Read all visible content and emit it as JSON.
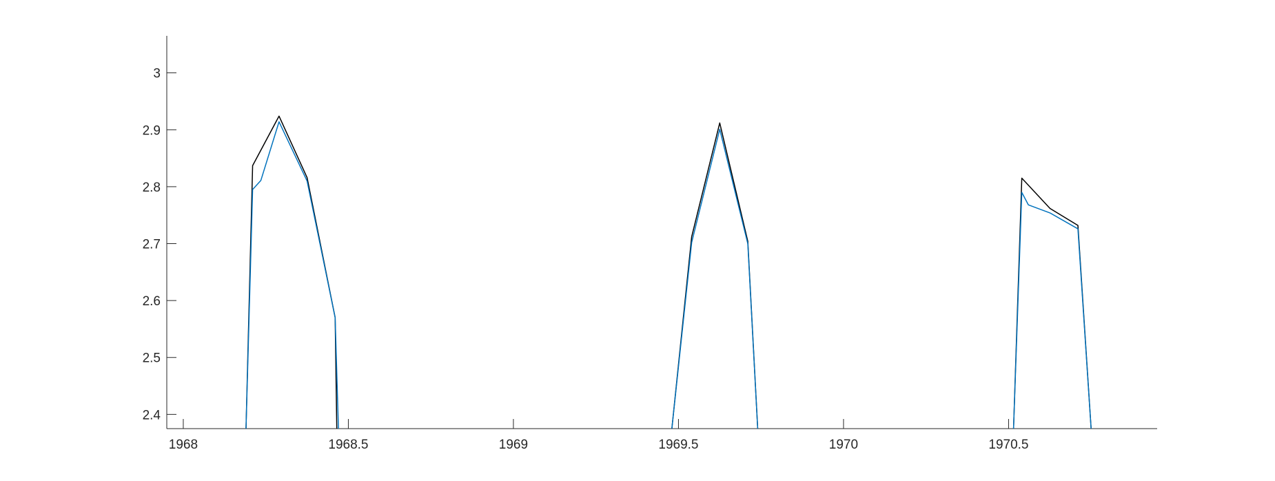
{
  "chart_data": {
    "type": "line",
    "title": "",
    "xlabel": "",
    "ylabel": "",
    "xlim": [
      1967.95,
      1970.95
    ],
    "ylim": [
      2.375,
      3.065
    ],
    "x_ticks": [
      1968,
      1968.5,
      1969,
      1969.5,
      1970,
      1970.5
    ],
    "x_tick_labels": [
      "1968",
      "1968.5",
      "1969",
      "1969.5",
      "1970",
      "1970.5"
    ],
    "y_ticks": [
      2.4,
      2.5,
      2.6,
      2.7,
      2.8,
      2.9,
      3.0
    ],
    "y_tick_labels": [
      "2.4",
      "2.5",
      "2.6",
      "2.7",
      "2.8",
      "2.9",
      "3"
    ],
    "grid": false,
    "box": false,
    "series": [
      {
        "color": "#000000",
        "segments": [
          [
            [
              1968.19,
              2.375
            ],
            [
              1968.21,
              2.837
            ],
            [
              1968.29,
              2.924
            ],
            [
              1968.375,
              2.816
            ],
            [
              1968.46,
              2.57
            ],
            [
              1968.465,
              2.375
            ]
          ],
          [
            [
              1969.48,
              2.375
            ],
            [
              1969.54,
              2.712
            ],
            [
              1969.625,
              2.912
            ],
            [
              1969.71,
              2.704
            ],
            [
              1969.74,
              2.375
            ]
          ],
          [
            [
              1970.515,
              2.375
            ],
            [
              1970.54,
              2.815
            ],
            [
              1970.625,
              2.762
            ],
            [
              1970.71,
              2.732
            ],
            [
              1970.75,
              2.375
            ]
          ]
        ]
      },
      {
        "color": "#0072BD",
        "segments": [
          [
            [
              1968.19,
              2.375
            ],
            [
              1968.21,
              2.795
            ],
            [
              1968.235,
              2.811
            ],
            [
              1968.29,
              2.914
            ],
            [
              1968.375,
              2.81
            ],
            [
              1968.46,
              2.57
            ],
            [
              1968.47,
              2.375
            ]
          ],
          [
            [
              1969.48,
              2.375
            ],
            [
              1969.54,
              2.702
            ],
            [
              1969.625,
              2.901
            ],
            [
              1969.71,
              2.7
            ],
            [
              1969.74,
              2.375
            ]
          ],
          [
            [
              1970.515,
              2.375
            ],
            [
              1970.54,
              2.79
            ],
            [
              1970.56,
              2.768
            ],
            [
              1970.625,
              2.754
            ],
            [
              1970.71,
              2.726
            ],
            [
              1970.75,
              2.375
            ]
          ]
        ]
      }
    ]
  }
}
